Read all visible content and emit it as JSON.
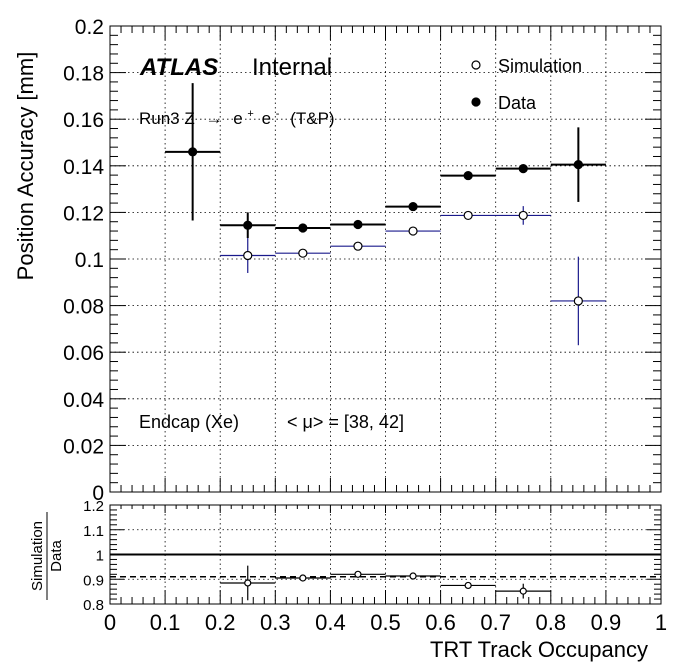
{
  "chart_data": [
    {
      "type": "scatter",
      "panel": "main",
      "xlabel": "TRT Track Occupancy",
      "ylabel": "Position Accuracy [mm]",
      "xlim": [
        0,
        1
      ],
      "ylim": [
        0,
        0.2
      ],
      "grid": true,
      "legend_position": "top-right",
      "x_tick_labels": [
        "0",
        "0.1",
        "0.2",
        "0.3",
        "0.4",
        "0.5",
        "0.6",
        "0.7",
        "0.8",
        "0.9",
        "1"
      ],
      "y_tick_labels": [
        "0",
        "0.02",
        "0.04",
        "0.06",
        "0.08",
        "0.1",
        "0.12",
        "0.14",
        "0.16",
        "0.18",
        "0.2"
      ],
      "series": [
        {
          "name": "Simulation",
          "marker": "open-circle",
          "color": "#1a1a8c",
          "bins": [
            [
              0.2,
              0.3
            ],
            [
              0.3,
              0.4
            ],
            [
              0.4,
              0.5
            ],
            [
              0.5,
              0.6
            ],
            [
              0.6,
              0.7
            ],
            [
              0.7,
              0.8
            ],
            [
              0.8,
              0.9
            ]
          ],
          "x": [
            0.25,
            0.35,
            0.45,
            0.55,
            0.65,
            0.75,
            0.85
          ],
          "y": [
            0.1015,
            0.1025,
            0.1055,
            0.112,
            0.1187,
            0.1187,
            0.082
          ],
          "yerr": [
            0.0075,
            0.001,
            0.001,
            0.001,
            0.001,
            0.004,
            0.019
          ]
        },
        {
          "name": "Data",
          "marker": "filled-circle",
          "color": "#000000",
          "bins": [
            [
              0.1,
              0.2
            ],
            [
              0.2,
              0.3
            ],
            [
              0.3,
              0.4
            ],
            [
              0.4,
              0.5
            ],
            [
              0.5,
              0.6
            ],
            [
              0.6,
              0.7
            ],
            [
              0.7,
              0.8
            ],
            [
              0.8,
              0.9
            ]
          ],
          "x": [
            0.15,
            0.25,
            0.35,
            0.45,
            0.55,
            0.65,
            0.75,
            0.85
          ],
          "y": [
            0.146,
            0.1145,
            0.1133,
            0.1148,
            0.1225,
            0.1358,
            0.1388,
            0.1405
          ],
          "yerr": [
            0.0295,
            0.0055,
            0.001,
            0.001,
            0.001,
            0.001,
            0.001,
            0.016
          ]
        }
      ]
    },
    {
      "type": "scatter",
      "panel": "ratio",
      "xlabel": "TRT Track Occupancy",
      "ylabel": [
        "Simulation",
        "Data"
      ],
      "xlim": [
        0,
        1
      ],
      "ylim": [
        0.8,
        1.2
      ],
      "grid": true,
      "reference_line": 1.0,
      "dashed_line": 0.91,
      "x_tick_labels": [
        "0",
        "0.1",
        "0.2",
        "0.3",
        "0.4",
        "0.5",
        "0.6",
        "0.7",
        "0.8",
        "0.9",
        "1"
      ],
      "y_tick_labels": [
        "0.8",
        "0.9",
        "1",
        "1.1",
        "1.2"
      ],
      "series": [
        {
          "name": "Simulation / Data",
          "marker": "open-circle",
          "color": "#000000",
          "bins": [
            [
              0.2,
              0.3
            ],
            [
              0.3,
              0.4
            ],
            [
              0.4,
              0.5
            ],
            [
              0.5,
              0.6
            ],
            [
              0.6,
              0.7
            ],
            [
              0.7,
              0.8
            ]
          ],
          "x": [
            0.25,
            0.35,
            0.45,
            0.55,
            0.65,
            0.75
          ],
          "y": [
            0.885,
            0.905,
            0.92,
            0.913,
            0.875,
            0.852
          ],
          "yerr": [
            0.07,
            0.012,
            0.008,
            0.008,
            0.008,
            0.03
          ]
        }
      ]
    }
  ],
  "annotations": {
    "atlas": "ATLAS",
    "internal": "Internal",
    "process_prefix": "Run3 Z",
    "process_arrow": "→",
    "electron_plus": "e",
    "plus_sign": "+",
    "electron_minus": "e",
    "minus_sign": "-",
    "process_suffix": "(T&P)",
    "region": "Endcap (Xe)",
    "mu_label": "< μ> = [38, 42]"
  },
  "colors": {
    "simulation": "#1a1a8c",
    "data": "#000000",
    "grid": "#000000"
  }
}
